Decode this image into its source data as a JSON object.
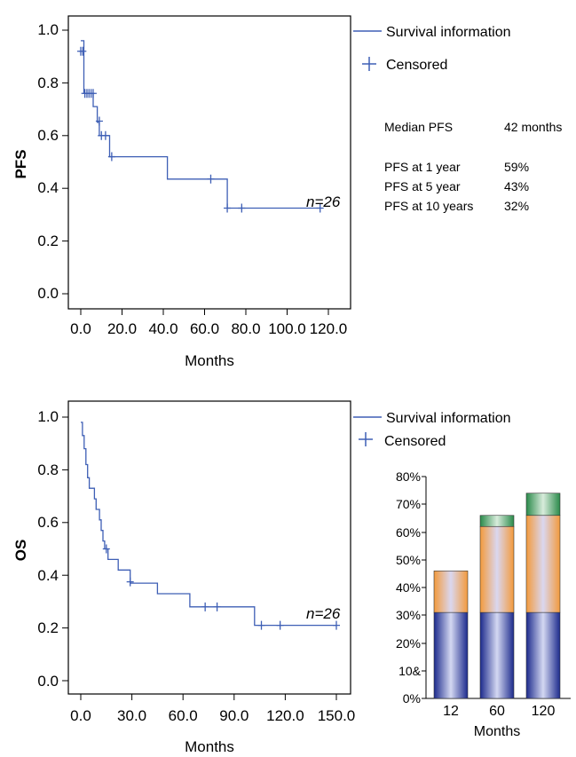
{
  "chart_data": [
    {
      "type": "line",
      "subtype": "kaplan-meier",
      "title": "",
      "xlabel": "Months",
      "ylabel": "PFS",
      "xlim": [
        0,
        120
      ],
      "ylim": [
        0,
        1
      ],
      "xticks": [
        "0.0",
        "20.0",
        "40.0",
        "60.0",
        "80.0",
        "100.0",
        "120.0"
      ],
      "yticks": [
        "0.0",
        "0.2",
        "0.4",
        "0.6",
        "0.8",
        "1.0"
      ],
      "annotation": "n=26",
      "legend": {
        "placement": "top-right",
        "line_label": "Survival information",
        "marker_label": "Censored"
      },
      "color": "#3e5fb5",
      "step": [
        [
          0,
          0.96
        ],
        [
          1.5,
          0.96
        ],
        [
          1.5,
          0.76
        ],
        [
          6,
          0.76
        ],
        [
          6,
          0.71
        ],
        [
          8,
          0.71
        ],
        [
          8,
          0.65
        ],
        [
          9,
          0.65
        ],
        [
          9,
          0.6
        ],
        [
          14,
          0.6
        ],
        [
          14,
          0.52
        ],
        [
          42,
          0.52
        ],
        [
          42,
          0.435
        ],
        [
          71,
          0.435
        ],
        [
          71,
          0.325
        ],
        [
          116,
          0.325
        ]
      ],
      "censored": [
        [
          0,
          0.92
        ],
        [
          1,
          0.92
        ],
        [
          2,
          0.76
        ],
        [
          3,
          0.76
        ],
        [
          4,
          0.76
        ],
        [
          5,
          0.76
        ],
        [
          6,
          0.76
        ],
        [
          9,
          0.655
        ],
        [
          10,
          0.6
        ],
        [
          12,
          0.6
        ],
        [
          15,
          0.52
        ],
        [
          63,
          0.435
        ],
        [
          71,
          0.325
        ],
        [
          78,
          0.325
        ],
        [
          116,
          0.325
        ]
      ],
      "stats": [
        {
          "label": "Median PFS",
          "value": "42 months"
        },
        {
          "label": "PFS at 1 year",
          "value": "59%"
        },
        {
          "label": "PFS at 5 year",
          "value": "43%"
        },
        {
          "label": "PFS at 10 years",
          "value": "32%"
        }
      ]
    },
    {
      "type": "line",
      "subtype": "kaplan-meier",
      "title": "",
      "xlabel": "Months",
      "ylabel": "OS",
      "xlim": [
        0,
        150
      ],
      "ylim": [
        0,
        1
      ],
      "xticks": [
        "0.0",
        "30.0",
        "60.0",
        "90.0",
        "120.0",
        "150.0"
      ],
      "yticks": [
        "0.0",
        "0.2",
        "0.4",
        "0.6",
        "0.8",
        "1.0"
      ],
      "annotation": "n=26",
      "legend": {
        "placement": "top-right",
        "line_label": "Survival information",
        "marker_label": "Censored"
      },
      "color": "#3e5fb5",
      "step": [
        [
          0,
          0.98
        ],
        [
          1,
          0.98
        ],
        [
          1,
          0.93
        ],
        [
          2,
          0.93
        ],
        [
          2,
          0.88
        ],
        [
          3,
          0.88
        ],
        [
          3,
          0.82
        ],
        [
          4,
          0.82
        ],
        [
          4,
          0.77
        ],
        [
          5,
          0.77
        ],
        [
          5,
          0.73
        ],
        [
          8,
          0.73
        ],
        [
          8,
          0.69
        ],
        [
          9,
          0.69
        ],
        [
          9,
          0.65
        ],
        [
          11,
          0.65
        ],
        [
          11,
          0.61
        ],
        [
          12,
          0.61
        ],
        [
          12,
          0.57
        ],
        [
          13,
          0.57
        ],
        [
          13,
          0.53
        ],
        [
          14,
          0.53
        ],
        [
          14,
          0.5
        ],
        [
          16,
          0.5
        ],
        [
          16,
          0.46
        ],
        [
          22,
          0.46
        ],
        [
          22,
          0.42
        ],
        [
          29,
          0.42
        ],
        [
          29,
          0.37
        ],
        [
          45,
          0.37
        ],
        [
          45,
          0.33
        ],
        [
          64,
          0.33
        ],
        [
          64,
          0.28
        ],
        [
          102,
          0.28
        ],
        [
          102,
          0.21
        ],
        [
          150,
          0.21
        ]
      ],
      "censored": [
        [
          15,
          0.5
        ],
        [
          29,
          0.375
        ],
        [
          73,
          0.28
        ],
        [
          80,
          0.28
        ],
        [
          106,
          0.21
        ],
        [
          117,
          0.21
        ],
        [
          150,
          0.21
        ]
      ]
    },
    {
      "type": "bar",
      "stacked": true,
      "title": "",
      "xlabel": "Months",
      "ylabel": "",
      "categories": [
        "12",
        "60",
        "120"
      ],
      "ylim": [
        0,
        80
      ],
      "yticks": [
        "0%",
        "10&",
        "20%",
        "30%",
        "40%",
        "50%",
        "60%",
        "70%",
        "80%"
      ],
      "segment_colors": [
        "#2a3a9a",
        "#f2a050",
        "#2f9a55"
      ],
      "series": [
        {
          "values": [
            31,
            31,
            31
          ]
        },
        {
          "values": [
            15,
            31,
            35
          ]
        },
        {
          "values": [
            0,
            4,
            8
          ]
        }
      ]
    }
  ]
}
